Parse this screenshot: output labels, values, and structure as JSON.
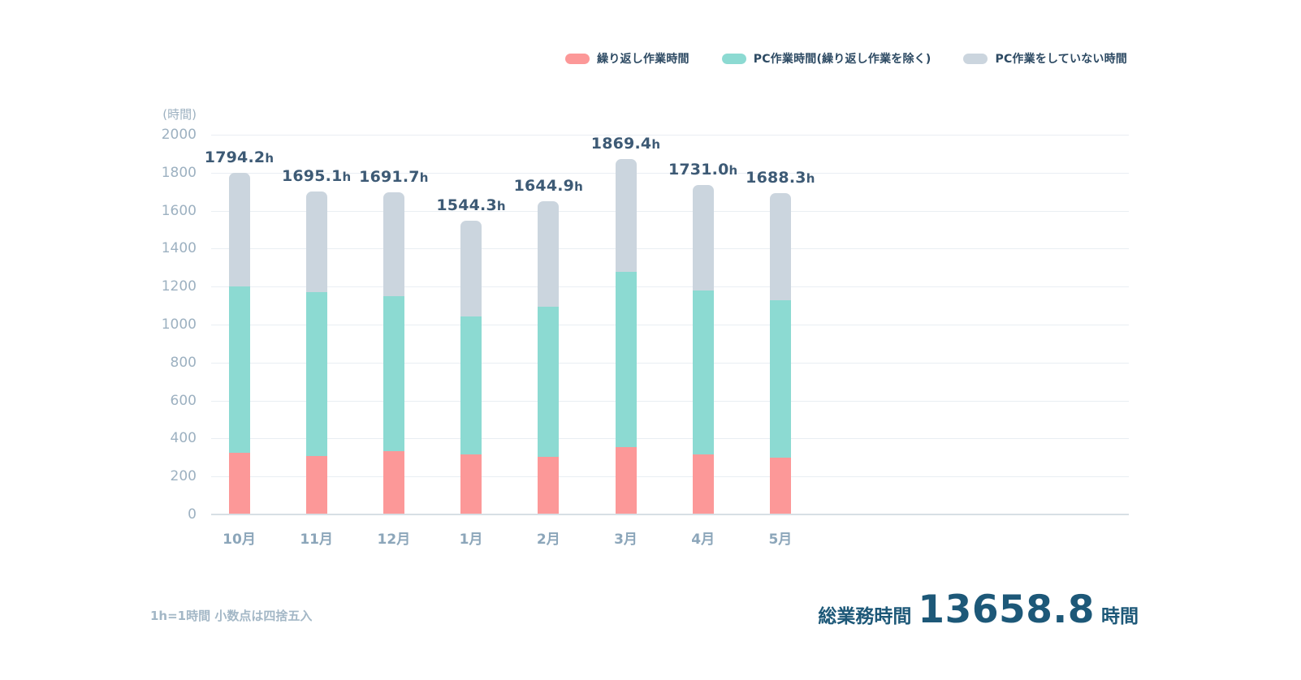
{
  "chart_data": {
    "type": "bar",
    "stacked": true,
    "ylabel": "(時間)",
    "ylim": [
      0,
      2000
    ],
    "yticks": [
      0,
      200,
      400,
      600,
      800,
      1000,
      1200,
      1400,
      1600,
      1800,
      2000
    ],
    "grid": true,
    "legend_position": "top-right",
    "categories": [
      "10月",
      "11月",
      "12月",
      "1月",
      "2月",
      "3月",
      "4月",
      "5月"
    ],
    "series": [
      {
        "name": "繰り返し作業時間",
        "color": "#fc9898",
        "values": [
          322,
          305,
          330,
          310,
          300,
          350,
          310,
          295
        ]
      },
      {
        "name": "PC作業時間(繰り返し作業を除く)",
        "color": "#8cdad2",
        "values": [
          873,
          860,
          815,
          730,
          790,
          925,
          865,
          830
        ]
      },
      {
        "name": "PC作業をしていない時間",
        "color": "#cbd5de",
        "values": [
          599.2,
          530.1,
          546.7,
          504.3,
          554.9,
          594.4,
          556.0,
          563.3
        ]
      }
    ],
    "bar_total_labels": [
      "1794.2",
      "1695.1",
      "1691.7",
      "1544.3",
      "1644.9",
      "1869.4",
      "1731.0",
      "1688.3"
    ],
    "bar_total_unit": "h"
  },
  "footer": {
    "note": "1h=1時間 小数点は四捨五入",
    "total_label": "総業務時間",
    "total_value": "13658.8",
    "total_unit": "時間"
  }
}
